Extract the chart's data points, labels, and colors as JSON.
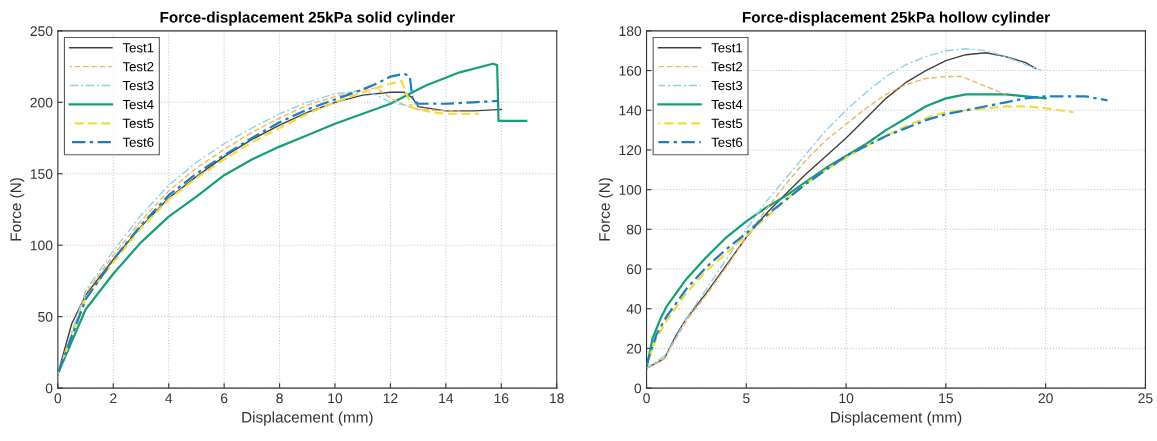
{
  "chart_data": [
    {
      "type": "line",
      "title": "Force-displacement 25kPa solid cylinder",
      "xlabel": "Displacement (mm)",
      "ylabel": "Force (N)",
      "xlim": [
        0,
        18
      ],
      "xticks": [
        0,
        2,
        4,
        6,
        8,
        10,
        12,
        14,
        16,
        18
      ],
      "ylim": [
        0,
        250
      ],
      "yticks": [
        0,
        50,
        100,
        150,
        200,
        250
      ],
      "grid": true,
      "legend": "top left",
      "series": [
        {
          "name": "Test1",
          "color": "#404040",
          "line_style": "solid",
          "x": [
            0,
            0.5,
            1,
            2,
            3,
            4,
            5,
            6,
            7,
            8,
            9,
            10,
            11,
            12,
            12.5,
            12.8,
            13,
            14,
            15,
            16
          ],
          "values": [
            10,
            45,
            65,
            90,
            113,
            133,
            148,
            162,
            174,
            184,
            193,
            200,
            205,
            207,
            207,
            203,
            197,
            194,
            194,
            195
          ]
        },
        {
          "name": "Test2",
          "color": "#f2b65c",
          "line_style": "dashed",
          "x": [
            0,
            1,
            2,
            3,
            4,
            5,
            6,
            7,
            8,
            9,
            10,
            11,
            11.5,
            12,
            12.5,
            13,
            14,
            14.5
          ],
          "values": [
            10,
            66,
            93,
            117,
            138,
            154,
            167,
            179,
            189,
            198,
            204,
            209,
            210,
            203,
            198,
            195,
            194,
            194
          ]
        },
        {
          "name": "Test3",
          "color": "#8dd0f0",
          "line_style": "dashdot",
          "x": [
            0,
            1,
            2,
            3,
            4,
            5,
            6,
            7,
            8,
            9,
            10,
            11,
            11.5,
            12,
            12.5,
            13
          ],
          "values": [
            10,
            68,
            96,
            121,
            142,
            158,
            171,
            182,
            192,
            200,
            206,
            208,
            205,
            200,
            198,
            199
          ]
        },
        {
          "name": "Test4",
          "color": "#13a079",
          "line_style": "solid",
          "x": [
            0,
            1,
            2,
            3,
            4,
            5,
            6,
            7,
            8,
            9,
            10,
            11,
            12,
            12.8,
            13.3,
            14.5,
            15.7,
            15.85,
            15.9,
            16.9
          ],
          "values": [
            10,
            55,
            80,
            102,
            120,
            134,
            149,
            160,
            169,
            177,
            185,
            192,
            199,
            207,
            212,
            221,
            227,
            226,
            187,
            187
          ]
        },
        {
          "name": "Test5",
          "color": "#f2dc3c",
          "line_style": "dashed",
          "x": [
            0,
            1,
            2,
            3,
            4,
            5,
            6,
            7,
            8,
            9,
            10,
            11,
            12,
            12.4,
            12.6,
            12.8,
            13.5,
            14,
            15.2
          ],
          "values": [
            10,
            63,
            88,
            112,
            132,
            147,
            160,
            172,
            182,
            192,
            200,
            207,
            213,
            215,
            205,
            196,
            193,
            192,
            192
          ]
        },
        {
          "name": "Test6",
          "color": "#1c7cc4",
          "line_style": "dashdot",
          "x": [
            0,
            1,
            2,
            3,
            4,
            5,
            6,
            7,
            8,
            9,
            10,
            11,
            11.5,
            12,
            12.5,
            12.7,
            12.8,
            13,
            14,
            15,
            15.9
          ],
          "values": [
            10,
            62,
            90,
            114,
            135,
            150,
            163,
            175,
            186,
            195,
            202,
            209,
            213,
            218,
            220,
            218,
            202,
            199,
            199,
            200,
            201
          ]
        }
      ]
    },
    {
      "type": "line",
      "title": "Force-displacement 25kPa hollow cylinder",
      "xlabel": "Displacement (mm)",
      "ylabel": "Force (N)",
      "xlim": [
        0,
        25
      ],
      "xticks": [
        0,
        5,
        10,
        15,
        20,
        25
      ],
      "ylim": [
        0,
        180
      ],
      "yticks": [
        0,
        20,
        40,
        60,
        80,
        100,
        120,
        140,
        160,
        180
      ],
      "grid": true,
      "legend": "top left",
      "series": [
        {
          "name": "Test1",
          "color": "#404040",
          "line_style": "solid",
          "x": [
            0,
            0.9,
            1.5,
            2,
            3,
            4,
            5,
            6,
            7,
            8,
            9,
            10,
            11,
            12,
            13,
            14,
            15,
            16,
            17,
            18,
            19,
            19.5
          ],
          "values": [
            10,
            15,
            27,
            35,
            48,
            62,
            76,
            88,
            98,
            108,
            117,
            126,
            136,
            146,
            154,
            160,
            165,
            168,
            169,
            167,
            164,
            161
          ]
        },
        {
          "name": "Test2",
          "color": "#f2b65c",
          "line_style": "dashed",
          "x": [
            0,
            0.9,
            2,
            3,
            4,
            5,
            6,
            7,
            8,
            9,
            10,
            11,
            12,
            13,
            14,
            15,
            15.8,
            17,
            18
          ],
          "values": [
            10,
            15,
            34,
            47,
            61,
            76,
            90,
            103,
            115,
            125,
            133,
            141,
            148,
            153,
            156,
            157,
            157,
            152,
            148
          ]
        },
        {
          "name": "Test3",
          "color": "#8dd0f0",
          "line_style": "dashdot",
          "x": [
            0,
            1,
            2,
            3,
            4,
            5,
            6,
            7,
            8,
            9,
            10,
            11,
            12,
            13,
            14,
            15,
            16,
            17,
            18,
            19,
            19.8
          ],
          "values": [
            10,
            17,
            35,
            50,
            65,
            80,
            94,
            106,
            118,
            130,
            140,
            149,
            157,
            163,
            167,
            170,
            171,
            170,
            167,
            163,
            160
          ]
        },
        {
          "name": "Test4",
          "color": "#13a079",
          "line_style": "solid",
          "x": [
            0,
            0.3,
            0.7,
            1,
            2,
            3,
            4,
            5,
            6,
            7,
            8,
            9,
            10,
            11,
            12,
            13,
            14,
            15,
            16,
            17,
            18,
            19,
            20
          ],
          "values": [
            10,
            25,
            35,
            41,
            55,
            66,
            76,
            84,
            91,
            97,
            104,
            111,
            117,
            123,
            130,
            136,
            142,
            146,
            148,
            148,
            148,
            147,
            146
          ]
        },
        {
          "name": "Test5",
          "color": "#f2dc3c",
          "line_style": "dashed",
          "x": [
            0,
            0.5,
            1,
            2,
            3,
            4,
            5,
            6,
            7,
            8,
            9,
            10,
            11,
            12,
            13,
            14,
            15,
            16,
            17,
            18,
            19,
            20,
            21.4
          ],
          "values": [
            12,
            25,
            34,
            48,
            59,
            68,
            77,
            86,
            95,
            103,
            110,
            116,
            122,
            127,
            132,
            136,
            139,
            140,
            141,
            142,
            142,
            141,
            139
          ]
        },
        {
          "name": "Test6",
          "color": "#1c7cc4",
          "line_style": "dashdot",
          "x": [
            0,
            0.5,
            1,
            2,
            3,
            4,
            5,
            6,
            7,
            8,
            9,
            10,
            11,
            12,
            13,
            14,
            15,
            16,
            17,
            18,
            19,
            20,
            21,
            22,
            23.1
          ],
          "values": [
            12,
            27,
            36,
            50,
            61,
            70,
            78,
            87,
            95,
            103,
            110,
            117,
            122,
            127,
            131,
            135,
            138,
            140,
            142,
            144,
            146,
            147,
            147,
            147,
            145
          ]
        }
      ]
    }
  ]
}
